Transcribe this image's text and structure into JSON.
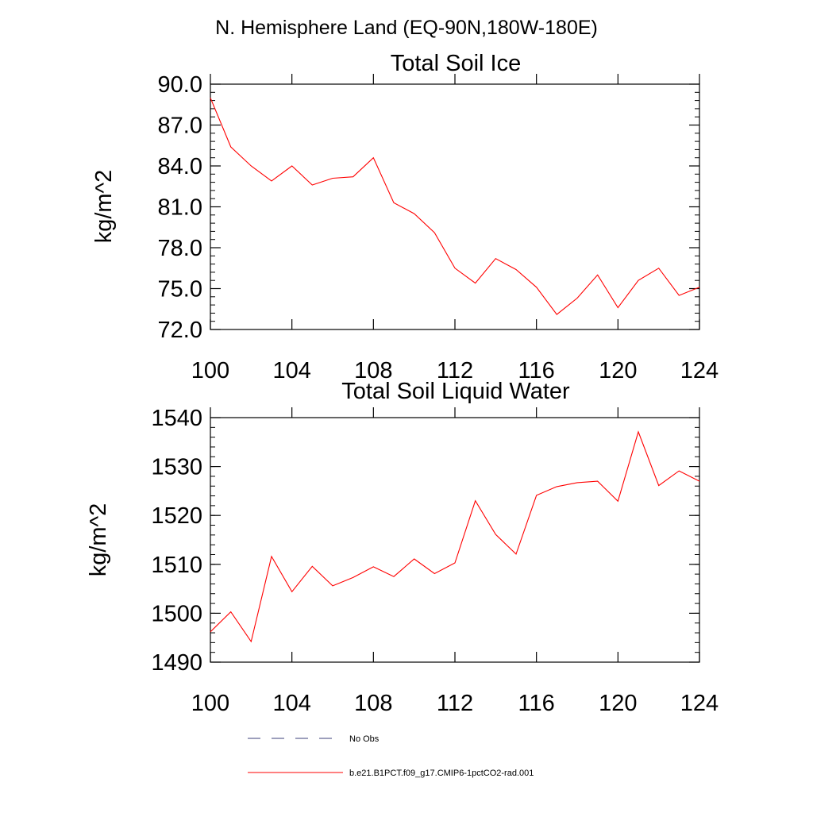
{
  "figure": {
    "title": "N. Hemisphere Land (EQ-90N,180W-180E)"
  },
  "legend": {
    "entries": [
      {
        "label": "No Obs",
        "style": "dashed",
        "color": "#3b3f7a"
      },
      {
        "label": "b.e21.B1PCT.f09_g17.CMIP6-1pctCO2-rad.001",
        "style": "solid",
        "color": "#ff0000"
      }
    ]
  },
  "chart_data": [
    {
      "type": "line",
      "title": "Total Soil Ice",
      "xlabel": "",
      "ylabel": "kg/m^2",
      "xlim": [
        100,
        124
      ],
      "ylim": [
        72,
        90
      ],
      "xticks": [
        100,
        104,
        108,
        112,
        116,
        120,
        124
      ],
      "xtick_labels": [
        "100",
        "104",
        "108",
        "112",
        "116",
        "120",
        "124"
      ],
      "yticks": [
        72,
        75,
        78,
        81,
        84,
        87,
        90
      ],
      "ytick_labels": [
        "72.0",
        "75.0",
        "78.0",
        "81.0",
        "84.0",
        "87.0",
        "90.0"
      ],
      "yminor_step": 0.6,
      "grid": false,
      "series": [
        {
          "color": "#ff0000",
          "x": [
            100,
            101,
            102,
            103,
            104,
            105,
            106,
            107,
            108,
            109,
            110,
            111,
            112,
            113,
            114,
            115,
            116,
            117,
            118,
            119,
            120,
            121,
            122,
            123,
            124
          ],
          "values": [
            89.0,
            85.4,
            84.0,
            82.9,
            84.0,
            82.6,
            83.1,
            83.2,
            84.6,
            81.3,
            80.5,
            79.1,
            76.5,
            75.4,
            77.2,
            76.4,
            75.1,
            73.1,
            74.3,
            76.0,
            73.6,
            75.6,
            76.5,
            74.5,
            75.1
          ]
        }
      ]
    },
    {
      "type": "line",
      "title": "Total Soil Liquid Water",
      "xlabel": "",
      "ylabel": "kg/m^2",
      "xlim": [
        100,
        124
      ],
      "ylim": [
        1490,
        1540
      ],
      "xticks": [
        100,
        104,
        108,
        112,
        116,
        120,
        124
      ],
      "xtick_labels": [
        "100",
        "104",
        "108",
        "112",
        "116",
        "120",
        "124"
      ],
      "yticks": [
        1490,
        1500,
        1510,
        1520,
        1530,
        1540
      ],
      "ytick_labels": [
        "1490",
        "1500",
        "1510",
        "1520",
        "1530",
        "1540"
      ],
      "yminor_step": 2,
      "grid": false,
      "series": [
        {
          "color": "#ff0000",
          "x": [
            100,
            101,
            102,
            103,
            104,
            105,
            106,
            107,
            108,
            109,
            110,
            111,
            112,
            113,
            114,
            115,
            116,
            117,
            118,
            119,
            120,
            121,
            122,
            123,
            124
          ],
          "values": [
            1496.2,
            1500.3,
            1494.2,
            1511.6,
            1504.4,
            1509.6,
            1505.6,
            1507.3,
            1509.5,
            1507.5,
            1511.1,
            1508.1,
            1510.3,
            1523.0,
            1516.1,
            1512.1,
            1524.1,
            1525.9,
            1526.7,
            1527.0,
            1522.9,
            1537.1,
            1526.1,
            1529.1,
            1527.0
          ]
        }
      ]
    }
  ]
}
